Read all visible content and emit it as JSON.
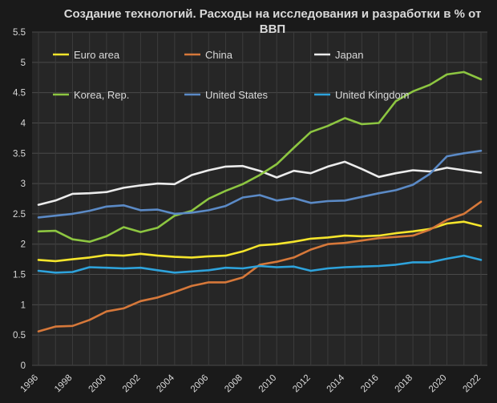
{
  "chart_data": {
    "type": "line",
    "title": "Создание технологий. Расходы на исследования и разработки в % от ВВП",
    "title_lines": [
      "Создание технологий. Расходы на исследования и разработки в % от",
      "ВВП"
    ],
    "xlabel": "",
    "ylabel": "",
    "ylim": [
      0,
      5.5
    ],
    "yticks": [
      "0",
      "0.5",
      "1",
      "1.5",
      "2",
      "2.5",
      "3",
      "3.5",
      "4",
      "4.5",
      "5",
      "5.5"
    ],
    "xlim": [
      1996,
      2022
    ],
    "xticks": [
      "1996",
      "1998",
      "2000",
      "2002",
      "2004",
      "2006",
      "2008",
      "2010",
      "2012",
      "2014",
      "2016",
      "2018",
      "2020",
      "2022"
    ],
    "grid": true,
    "legend_position": "top, inside plot",
    "background": "#262626",
    "x": [
      1996,
      1997,
      1998,
      1999,
      2000,
      2001,
      2002,
      2003,
      2004,
      2005,
      2006,
      2007,
      2008,
      2009,
      2010,
      2011,
      2012,
      2013,
      2014,
      2015,
      2016,
      2017,
      2018,
      2019,
      2020,
      2021,
      2022
    ],
    "series": [
      {
        "name": "Euro area",
        "color": "#f5e52c",
        "values": [
          1.74,
          1.72,
          1.75,
          1.78,
          1.82,
          1.81,
          1.84,
          1.81,
          1.79,
          1.78,
          1.8,
          1.81,
          1.88,
          1.98,
          2.0,
          2.04,
          2.09,
          2.11,
          2.14,
          2.13,
          2.14,
          2.18,
          2.21,
          2.25,
          2.34,
          2.37,
          2.3
        ]
      },
      {
        "name": "China",
        "color": "#d6783a",
        "values": [
          0.56,
          0.64,
          0.65,
          0.75,
          0.89,
          0.94,
          1.06,
          1.12,
          1.21,
          1.31,
          1.37,
          1.37,
          1.45,
          1.66,
          1.71,
          1.78,
          1.91,
          2.0,
          2.02,
          2.06,
          2.1,
          2.12,
          2.14,
          2.24,
          2.4,
          2.5,
          2.7
        ]
      },
      {
        "name": "Japan",
        "color": "#ececec",
        "values": [
          2.65,
          2.72,
          2.83,
          2.84,
          2.86,
          2.93,
          2.97,
          3.0,
          2.99,
          3.14,
          3.22,
          3.28,
          3.29,
          3.21,
          3.1,
          3.21,
          3.17,
          3.28,
          3.36,
          3.24,
          3.11,
          3.17,
          3.22,
          3.2,
          3.26,
          3.22,
          3.18
        ]
      },
      {
        "name": "Korea, Rep.",
        "color": "#8dc641",
        "values": [
          2.21,
          2.22,
          2.08,
          2.04,
          2.13,
          2.28,
          2.2,
          2.27,
          2.47,
          2.55,
          2.75,
          2.88,
          2.99,
          3.14,
          3.32,
          3.59,
          3.85,
          3.95,
          4.08,
          3.98,
          4.0,
          4.36,
          4.52,
          4.63,
          4.8,
          4.84,
          4.72
        ]
      },
      {
        "name": "United States",
        "color": "#5b8ac6",
        "values": [
          2.44,
          2.47,
          2.5,
          2.55,
          2.62,
          2.64,
          2.56,
          2.57,
          2.5,
          2.52,
          2.56,
          2.63,
          2.77,
          2.81,
          2.72,
          2.76,
          2.68,
          2.71,
          2.72,
          2.78,
          2.84,
          2.89,
          2.98,
          3.16,
          3.45,
          3.5,
          3.54
        ]
      },
      {
        "name": "United Kingdom",
        "color": "#2ea3dc",
        "values": [
          1.56,
          1.53,
          1.54,
          1.62,
          1.61,
          1.6,
          1.61,
          1.57,
          1.53,
          1.55,
          1.57,
          1.61,
          1.6,
          1.64,
          1.62,
          1.63,
          1.56,
          1.6,
          1.62,
          1.63,
          1.64,
          1.66,
          1.7,
          1.7,
          1.76,
          1.81,
          1.74
        ]
      }
    ]
  }
}
